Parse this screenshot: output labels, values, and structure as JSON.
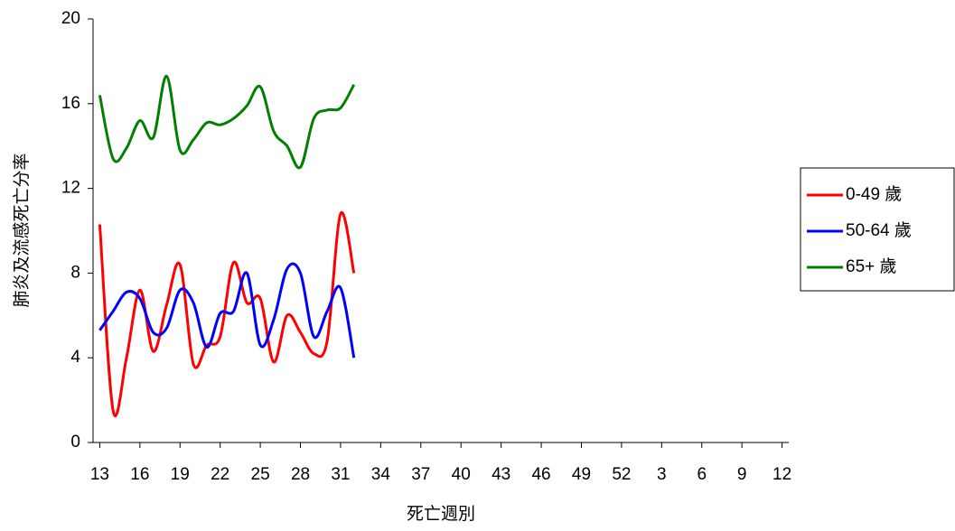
{
  "chart_data": {
    "type": "line",
    "ylabel": "肺炎及流感死亡分率",
    "xlabel": "死亡週別",
    "categories": [
      "13",
      null,
      null,
      "16",
      null,
      null,
      "19",
      null,
      null,
      "22",
      null,
      null,
      "25",
      null,
      null,
      "28",
      null,
      null,
      "31",
      null,
      null,
      "34",
      null,
      null,
      "37",
      null,
      null,
      "40",
      null,
      null,
      "43",
      null,
      null,
      "46",
      null,
      null,
      "49",
      null,
      null,
      "52",
      null,
      null,
      "3",
      null,
      null,
      "6",
      null,
      null,
      "9",
      null,
      null,
      "12"
    ],
    "series": [
      {
        "name": "0-49 歲",
        "color": "#ff0000",
        "values": [
          10.3,
          1.5,
          4,
          7.2,
          4.3,
          6.5,
          8.4,
          3.7,
          4.6,
          5,
          8.5,
          6.6,
          6.8,
          3.8,
          6,
          5.2,
          4.2,
          4.8,
          10.8,
          8,
          null,
          null,
          null,
          null,
          null,
          null,
          null,
          null,
          null,
          null,
          null,
          null,
          null,
          null,
          null,
          null,
          null,
          null,
          null,
          null,
          null,
          null,
          null,
          null,
          null,
          null,
          null,
          null,
          null,
          null,
          null,
          null
        ]
      },
      {
        "name": "50-64 歲",
        "color": "#0000ff",
        "values": [
          5.3,
          6.2,
          7.1,
          6.8,
          5.2,
          5.4,
          7.2,
          6.6,
          4.5,
          6.1,
          6.2,
          8,
          4.6,
          5.8,
          8.2,
          8,
          5,
          6.2,
          7.3,
          4,
          null,
          null,
          null,
          null,
          null,
          null,
          null,
          null,
          null,
          null,
          null,
          null,
          null,
          null,
          null,
          null,
          null,
          null,
          null,
          null,
          null,
          null,
          null,
          null,
          null,
          null,
          null,
          null,
          null,
          null,
          null,
          null
        ]
      },
      {
        "name": "65+ 歲",
        "color": "#008000",
        "values": [
          16.4,
          13.4,
          13.9,
          15.2,
          14.4,
          17.3,
          13.8,
          14.3,
          15.1,
          15,
          15.3,
          15.9,
          16.8,
          14.7,
          14,
          13,
          15.3,
          15.7,
          15.8,
          16.9,
          null,
          null,
          null,
          null,
          null,
          null,
          null,
          null,
          null,
          null,
          null,
          null,
          null,
          null,
          null,
          null,
          null,
          null,
          null,
          null,
          null,
          null,
          null,
          null,
          null,
          null,
          null,
          null,
          null,
          null,
          null,
          null
        ]
      }
    ],
    "ylim": [
      0,
      20
    ],
    "yticks": [
      0,
      4,
      8,
      12,
      16,
      20
    ],
    "legend": "right"
  }
}
